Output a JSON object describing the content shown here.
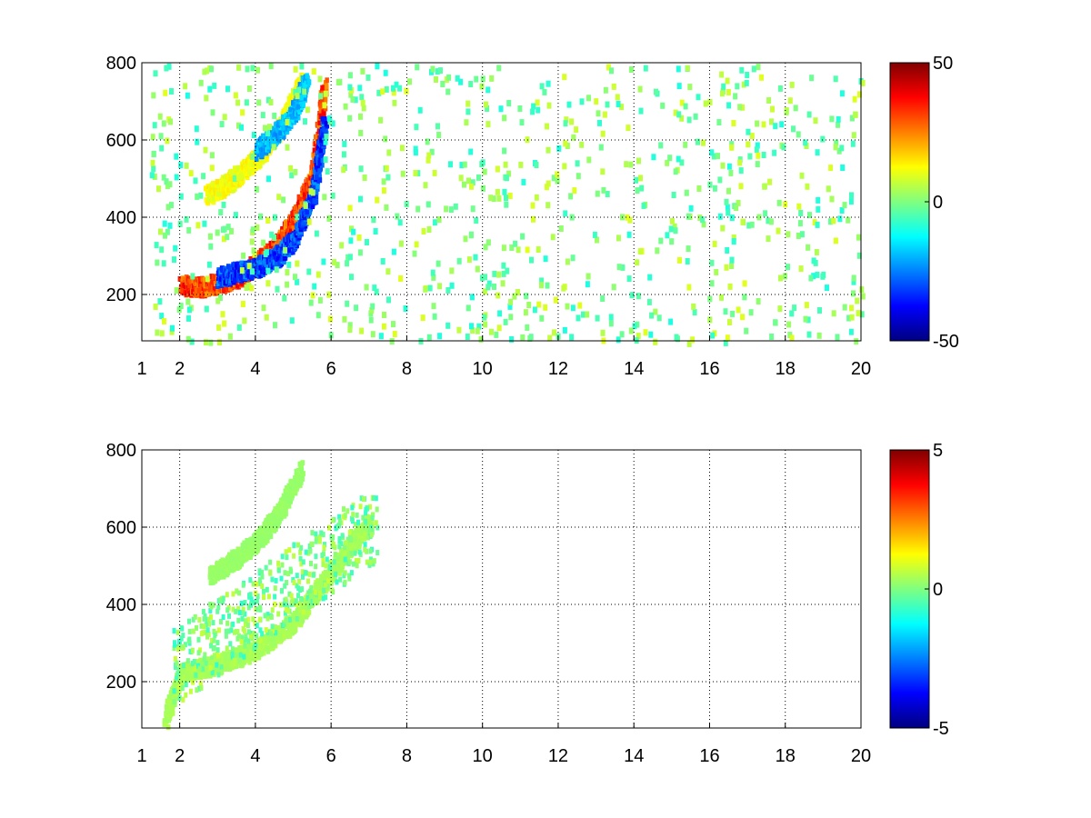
{
  "chart_data": [
    {
      "type": "heatmap",
      "title": "",
      "xlabel": "",
      "ylabel": "",
      "xlim": [
        1,
        20
      ],
      "ylim": [
        80,
        800
      ],
      "x_ticks": [
        1,
        2,
        4,
        6,
        8,
        10,
        12,
        14,
        16,
        18,
        20
      ],
      "x_tick_labels": [
        "1",
        "2",
        "4",
        "6",
        "8",
        "10",
        "12",
        "14",
        "16",
        "18",
        "20"
      ],
      "y_ticks": [
        200,
        400,
        600,
        800
      ],
      "y_tick_labels": [
        "200",
        "400",
        "600",
        "800"
      ],
      "grid": true,
      "colormap": "jet",
      "colorbar": {
        "range": [
          -50,
          50
        ],
        "ticks": [
          50,
          0,
          -50
        ],
        "tick_labels": [
          "50",
          "0",
          "-50"
        ]
      },
      "features": [
        {
          "description": "strong positive arc",
          "x": [
            2.0,
            2.5,
            3.0,
            3.5,
            4.0,
            4.5,
            5.0,
            5.5,
            5.8
          ],
          "y": [
            230,
            225,
            235,
            250,
            285,
            330,
            400,
            520,
            750
          ],
          "value": 40
        },
        {
          "description": "strong negative arc",
          "x": [
            3.0,
            3.5,
            4.0,
            4.5,
            5.0,
            5.5,
            5.8
          ],
          "y": [
            250,
            265,
            275,
            300,
            350,
            470,
            650
          ],
          "value": -40
        },
        {
          "description": "weak secondary arc",
          "x": [
            2.7,
            3.2,
            3.7,
            4.2,
            4.7,
            5.2
          ],
          "y": [
            465,
            490,
            530,
            580,
            650,
            760
          ],
          "value": 15
        },
        {
          "description": "negative secondary arc",
          "x": [
            4.0,
            4.5,
            5.0,
            5.3
          ],
          "y": [
            580,
            620,
            680,
            760
          ],
          "value": -25
        }
      ]
    },
    {
      "type": "heatmap",
      "title": "",
      "xlabel": "",
      "ylabel": "",
      "xlim": [
        1,
        20
      ],
      "ylim": [
        80,
        800
      ],
      "x_ticks": [
        1,
        2,
        4,
        6,
        8,
        10,
        12,
        14,
        16,
        18,
        20
      ],
      "x_tick_labels": [
        "1",
        "2",
        "4",
        "6",
        "8",
        "10",
        "12",
        "14",
        "16",
        "18",
        "20"
      ],
      "y_ticks": [
        200,
        400,
        600,
        800
      ],
      "y_tick_labels": [
        "200",
        "400",
        "600",
        "800"
      ],
      "grid": true,
      "colormap": "jet",
      "colorbar": {
        "range": [
          -5,
          5
        ],
        "ticks": [
          5,
          0,
          -5
        ],
        "tick_labels": [
          "5",
          "0",
          "-5"
        ]
      },
      "features": [
        {
          "description": "main band",
          "x": [
            1.6,
            2.0,
            3.0,
            4.0,
            5.0,
            5.8,
            6.5,
            7.0
          ],
          "y": [
            110,
            230,
            250,
            290,
            360,
            470,
            560,
            620
          ],
          "value": 0.5
        },
        {
          "description": "secondary arc",
          "x": [
            2.8,
            3.4,
            4.0,
            4.6,
            5.2
          ],
          "y": [
            480,
            520,
            570,
            640,
            760
          ],
          "value": 0.3
        }
      ]
    }
  ]
}
